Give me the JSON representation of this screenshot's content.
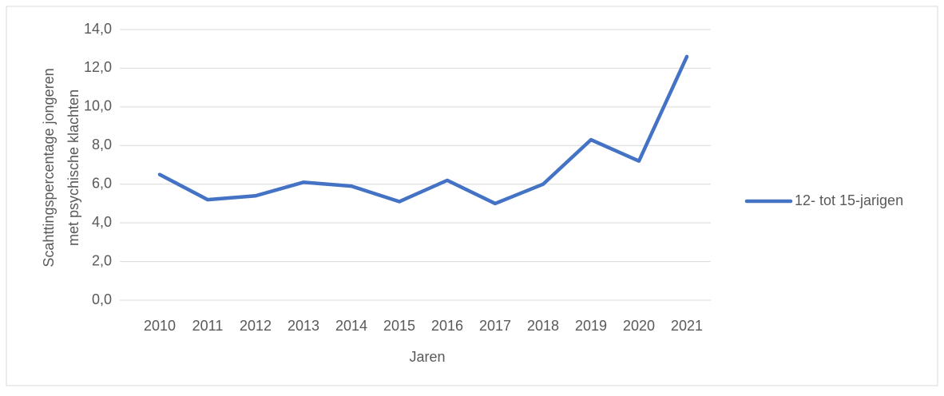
{
  "chart_data": {
    "type": "line",
    "xlabel": "Jaren",
    "ylabel": [
      "Scahttingspercentage jongeren",
      "met psychische klachten"
    ],
    "categories": [
      "2010",
      "2011",
      "2012",
      "2013",
      "2014",
      "2015",
      "2016",
      "2017",
      "2018",
      "2019",
      "2020",
      "2021"
    ],
    "series": [
      {
        "name": "12- tot 15-jarigen",
        "color": "#4472c4",
        "values": [
          6.5,
          5.2,
          5.4,
          6.1,
          5.9,
          5.1,
          6.2,
          5.0,
          6.0,
          8.3,
          7.2,
          12.6
        ]
      }
    ],
    "ylim": [
      0,
      14
    ],
    "yticks": [
      {
        "value": 0,
        "label": "0,0"
      },
      {
        "value": 2,
        "label": "2,0"
      },
      {
        "value": 4,
        "label": "4,0"
      },
      {
        "value": 6,
        "label": "6,0"
      },
      {
        "value": 8,
        "label": "8,0"
      },
      {
        "value": 10,
        "label": "10,0"
      },
      {
        "value": 12,
        "label": "12,0"
      },
      {
        "value": 14,
        "label": "14,0"
      }
    ],
    "grid": true,
    "legend": "right"
  }
}
